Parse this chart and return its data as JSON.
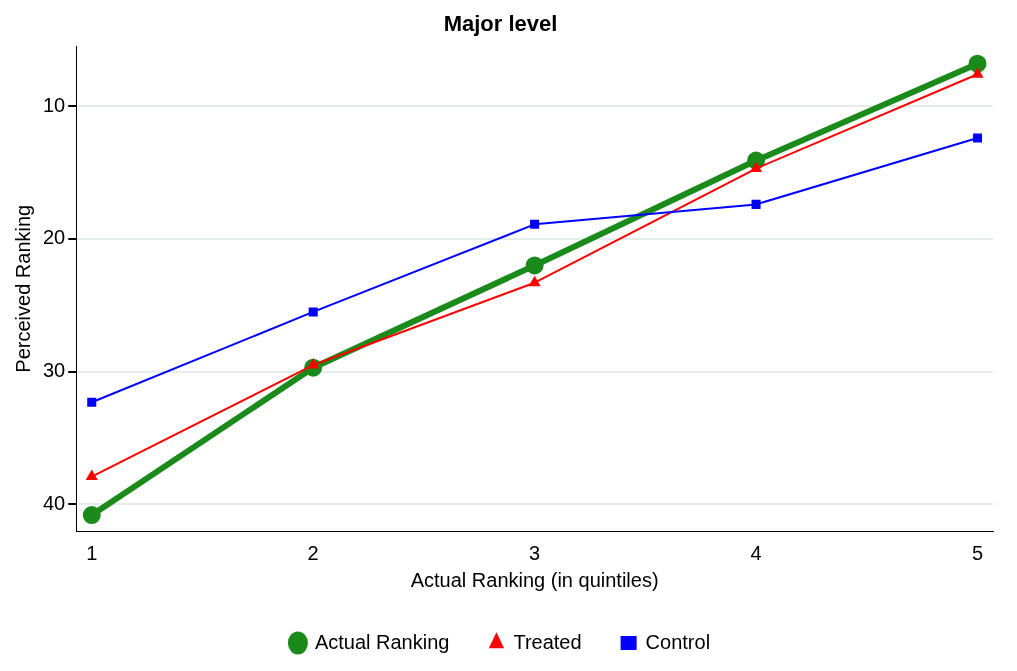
{
  "chart_data": {
    "type": "line",
    "title": "Major level",
    "xlabel": "Actual Ranking (in quintiles)",
    "ylabel": "Perceived Ranking",
    "x": [
      1,
      2,
      3,
      4,
      5
    ],
    "xlim": [
      0.93,
      5.07
    ],
    "xticks": [
      1,
      2,
      3,
      4,
      5
    ],
    "ylim": [
      42,
      5.5
    ],
    "yticks": [
      10,
      20,
      30,
      40
    ],
    "grid": "y",
    "legend": "bottom",
    "series": [
      {
        "name": "Actual Ranking",
        "color": "#1a8a1a",
        "marker": "circle",
        "values": [
          40.8,
          29.7,
          22.0,
          14.1,
          6.8
        ]
      },
      {
        "name": "Treated",
        "color": "#ff0000",
        "marker": "triangle",
        "values": [
          37.9,
          29.5,
          23.3,
          14.7,
          7.6
        ]
      },
      {
        "name": "Control",
        "color": "#0000ff",
        "marker": "square",
        "values": [
          32.3,
          25.5,
          18.9,
          17.4,
          12.4
        ]
      }
    ]
  }
}
